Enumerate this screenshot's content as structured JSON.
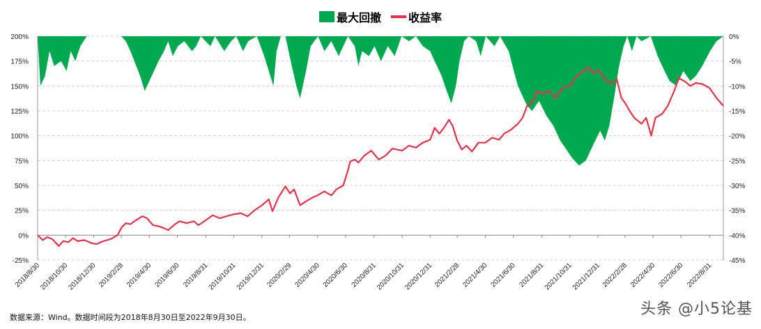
{
  "legend": {
    "drawdown": "最大回撤",
    "return": "收益率"
  },
  "note": "数据来源：Wind。数据时间段为2018年8月30日至2022年9月30日。",
  "watermark": "头条 @小5论基",
  "colors": {
    "drawdown": "#00a84f",
    "return": "#e8304a"
  },
  "chart_data": {
    "type": "line+area",
    "title": "",
    "left_axis": {
      "range": [
        -25,
        200
      ],
      "ticks": [
        "200%",
        "175%",
        "150%",
        "125%",
        "100%",
        "75%",
        "50%",
        "25%",
        "0%",
        "-25%"
      ]
    },
    "right_axis": {
      "range": [
        -45,
        0
      ],
      "ticks": [
        "0%",
        "-5%",
        "-10%",
        "-15%",
        "-20%",
        "-25%",
        "-30%",
        "-35%",
        "-40%",
        "-45%"
      ]
    },
    "x_range": [
      "2018-08-30",
      "2022-09-30"
    ],
    "x_ticks": [
      "2018/8/30",
      "2018/10/30",
      "2018/12/30",
      "2019/2/28",
      "2019/4/30",
      "2019/6/30",
      "2019/8/31",
      "2019/10/31",
      "2019/12/31",
      "2020/2/29",
      "2020/4/30",
      "2020/6/30",
      "2020/8/31",
      "2020/10/31",
      "2020/12/31",
      "2021/2/28",
      "2021/4/30",
      "2021/6/30",
      "2021/8/31",
      "2021/10/31",
      "2021/12/31",
      "2022/2/28",
      "2022/4/30",
      "2022/6/30",
      "2022/8/31"
    ],
    "grid": "horizontal dashed",
    "legend_position": "top",
    "series": [
      {
        "name": "收益率",
        "axis": "left",
        "type": "line",
        "points": [
          [
            "2018-08-30",
            0
          ],
          [
            "2018-09-10",
            -5
          ],
          [
            "2018-09-20",
            -2
          ],
          [
            "2018-10-01",
            -4
          ],
          [
            "2018-10-15",
            -11
          ],
          [
            "2018-10-25",
            -6
          ],
          [
            "2018-11-05",
            -7
          ],
          [
            "2018-11-15",
            -3
          ],
          [
            "2018-11-25",
            -6
          ],
          [
            "2018-12-10",
            -5
          ],
          [
            "2018-12-25",
            -8
          ],
          [
            "2019-01-05",
            -9
          ],
          [
            "2019-01-20",
            -6
          ],
          [
            "2019-02-05",
            -4
          ],
          [
            "2019-02-20",
            0
          ],
          [
            "2019-03-01",
            8
          ],
          [
            "2019-03-10",
            12
          ],
          [
            "2019-03-20",
            11
          ],
          [
            "2019-04-01",
            15
          ],
          [
            "2019-04-15",
            19
          ],
          [
            "2019-04-25",
            17
          ],
          [
            "2019-05-08",
            10
          ],
          [
            "2019-05-20",
            9
          ],
          [
            "2019-06-01",
            7
          ],
          [
            "2019-06-10",
            5
          ],
          [
            "2019-06-25",
            11
          ],
          [
            "2019-07-05",
            14
          ],
          [
            "2019-07-20",
            12
          ],
          [
            "2019-08-05",
            14
          ],
          [
            "2019-08-15",
            10
          ],
          [
            "2019-08-31",
            15
          ],
          [
            "2019-09-15",
            20
          ],
          [
            "2019-09-30",
            17
          ],
          [
            "2019-10-15",
            19
          ],
          [
            "2019-10-31",
            21
          ],
          [
            "2019-11-15",
            22
          ],
          [
            "2019-11-30",
            19
          ],
          [
            "2019-12-15",
            25
          ],
          [
            "2019-12-31",
            30
          ],
          [
            "2020-01-15",
            36
          ],
          [
            "2020-01-23",
            24
          ],
          [
            "2020-02-05",
            38
          ],
          [
            "2020-02-20",
            49
          ],
          [
            "2020-03-01",
            42
          ],
          [
            "2020-03-10",
            46
          ],
          [
            "2020-03-23",
            30
          ],
          [
            "2020-04-05",
            34
          ],
          [
            "2020-04-20",
            38
          ],
          [
            "2020-04-30",
            40
          ],
          [
            "2020-05-15",
            44
          ],
          [
            "2020-05-30",
            40
          ],
          [
            "2020-06-10",
            46
          ],
          [
            "2020-06-25",
            50
          ],
          [
            "2020-07-05",
            65
          ],
          [
            "2020-07-10",
            74
          ],
          [
            "2020-07-20",
            76
          ],
          [
            "2020-07-28",
            73
          ],
          [
            "2020-08-10",
            80
          ],
          [
            "2020-08-25",
            85
          ],
          [
            "2020-09-10",
            76
          ],
          [
            "2020-09-25",
            80
          ],
          [
            "2020-10-10",
            87
          ],
          [
            "2020-10-31",
            85
          ],
          [
            "2020-11-15",
            90
          ],
          [
            "2020-11-30",
            88
          ],
          [
            "2020-12-15",
            93
          ],
          [
            "2020-12-31",
            96
          ],
          [
            "2021-01-10",
            108
          ],
          [
            "2021-01-20",
            102
          ],
          [
            "2021-01-30",
            108
          ],
          [
            "2021-02-10",
            116
          ],
          [
            "2021-02-18",
            110
          ],
          [
            "2021-02-28",
            95
          ],
          [
            "2021-03-10",
            86
          ],
          [
            "2021-03-20",
            90
          ],
          [
            "2021-04-01",
            84
          ],
          [
            "2021-04-15",
            93
          ],
          [
            "2021-04-30",
            93
          ],
          [
            "2021-05-15",
            98
          ],
          [
            "2021-05-30",
            96
          ],
          [
            "2021-06-10",
            102
          ],
          [
            "2021-06-25",
            106
          ],
          [
            "2021-07-10",
            112
          ],
          [
            "2021-07-20",
            118
          ],
          [
            "2021-07-30",
            130
          ],
          [
            "2021-08-10",
            133
          ],
          [
            "2021-08-20",
            145
          ],
          [
            "2021-08-31",
            142
          ],
          [
            "2021-09-15",
            145
          ],
          [
            "2021-09-30",
            138
          ],
          [
            "2021-10-15",
            148
          ],
          [
            "2021-10-31",
            150
          ],
          [
            "2021-11-15",
            160
          ],
          [
            "2021-11-30",
            165
          ],
          [
            "2021-12-10",
            169
          ],
          [
            "2021-12-20",
            163
          ],
          [
            "2021-12-31",
            166
          ],
          [
            "2022-01-10",
            160
          ],
          [
            "2022-01-20",
            155
          ],
          [
            "2022-01-30",
            152
          ],
          [
            "2022-02-10",
            157
          ],
          [
            "2022-02-20",
            138
          ],
          [
            "2022-02-28",
            133
          ],
          [
            "2022-03-10",
            125
          ],
          [
            "2022-03-20",
            118
          ],
          [
            "2022-04-05",
            112
          ],
          [
            "2022-04-15",
            118
          ],
          [
            "2022-04-26",
            100
          ],
          [
            "2022-05-05",
            118
          ],
          [
            "2022-05-20",
            122
          ],
          [
            "2022-06-01",
            130
          ],
          [
            "2022-06-15",
            145
          ],
          [
            "2022-06-25",
            158
          ],
          [
            "2022-07-10",
            154
          ],
          [
            "2022-07-20",
            150
          ],
          [
            "2022-08-01",
            153
          ],
          [
            "2022-08-15",
            152
          ],
          [
            "2022-08-31",
            148
          ],
          [
            "2022-09-15",
            138
          ],
          [
            "2022-09-30",
            130
          ]
        ]
      },
      {
        "name": "最大回撤",
        "axis": "right",
        "type": "area",
        "points": [
          [
            "2018-08-30",
            0
          ],
          [
            "2018-09-05",
            -10
          ],
          [
            "2018-09-15",
            -8
          ],
          [
            "2018-09-25",
            -3
          ],
          [
            "2018-10-05",
            -6
          ],
          [
            "2018-10-20",
            -5
          ],
          [
            "2018-11-01",
            -7
          ],
          [
            "2018-11-10",
            -3
          ],
          [
            "2018-11-20",
            -5
          ],
          [
            "2018-12-01",
            -2
          ],
          [
            "2018-12-15",
            0
          ],
          [
            "2019-01-10",
            0
          ],
          [
            "2019-02-28",
            0
          ],
          [
            "2019-03-10",
            -1
          ],
          [
            "2019-03-20",
            -3
          ],
          [
            "2019-04-10",
            -8
          ],
          [
            "2019-04-20",
            -11
          ],
          [
            "2019-05-05",
            -8
          ],
          [
            "2019-05-20",
            -5
          ],
          [
            "2019-06-01",
            -3
          ],
          [
            "2019-06-10",
            -1
          ],
          [
            "2019-06-20",
            -4
          ],
          [
            "2019-07-01",
            -2
          ],
          [
            "2019-07-15",
            -1
          ],
          [
            "2019-08-01",
            -3
          ],
          [
            "2019-08-10",
            -2
          ],
          [
            "2019-08-20",
            0
          ],
          [
            "2019-09-10",
            -2
          ],
          [
            "2019-09-20",
            0
          ],
          [
            "2019-10-10",
            -3
          ],
          [
            "2019-10-25",
            -1
          ],
          [
            "2019-11-05",
            0
          ],
          [
            "2019-11-20",
            -3
          ],
          [
            "2019-12-01",
            -1
          ],
          [
            "2019-12-20",
            0
          ],
          [
            "2020-01-05",
            -4
          ],
          [
            "2020-01-15",
            -7
          ],
          [
            "2020-01-25",
            -10
          ],
          [
            "2020-02-01",
            -3
          ],
          [
            "2020-02-10",
            0
          ],
          [
            "2020-02-20",
            0
          ],
          [
            "2020-03-05",
            -6
          ],
          [
            "2020-03-15",
            -10
          ],
          [
            "2020-03-23",
            -12.5
          ],
          [
            "2020-04-05",
            -7
          ],
          [
            "2020-04-15",
            -2
          ],
          [
            "2020-05-01",
            0
          ],
          [
            "2020-05-15",
            -3
          ],
          [
            "2020-05-30",
            -1
          ],
          [
            "2020-06-15",
            -4
          ],
          [
            "2020-06-25",
            -2
          ],
          [
            "2020-07-05",
            0
          ],
          [
            "2020-07-20",
            -2
          ],
          [
            "2020-07-28",
            -6
          ],
          [
            "2020-08-05",
            -3
          ],
          [
            "2020-08-20",
            -4
          ],
          [
            "2020-09-01",
            -2
          ],
          [
            "2020-09-15",
            -5
          ],
          [
            "2020-09-30",
            -2
          ],
          [
            "2020-10-15",
            -4
          ],
          [
            "2020-10-30",
            0
          ],
          [
            "2020-11-15",
            -1
          ],
          [
            "2020-11-30",
            0
          ],
          [
            "2020-12-15",
            -2
          ],
          [
            "2020-12-31",
            -3
          ],
          [
            "2021-01-10",
            -5
          ],
          [
            "2021-01-25",
            -8
          ],
          [
            "2021-02-05",
            -11
          ],
          [
            "2021-02-15",
            -13.5
          ],
          [
            "2021-02-25",
            -10
          ],
          [
            "2021-03-05",
            -5
          ],
          [
            "2021-03-15",
            -1
          ],
          [
            "2021-03-25",
            0
          ],
          [
            "2021-04-10",
            -1
          ],
          [
            "2021-04-20",
            -4
          ],
          [
            "2021-05-01",
            0
          ],
          [
            "2021-05-20",
            -2
          ],
          [
            "2021-06-01",
            0
          ],
          [
            "2021-06-20",
            -3
          ],
          [
            "2021-07-01",
            -7
          ],
          [
            "2021-07-10",
            -10
          ],
          [
            "2021-07-20",
            -12
          ],
          [
            "2021-07-30",
            -14
          ],
          [
            "2021-08-10",
            -15
          ],
          [
            "2021-08-25",
            -13
          ],
          [
            "2021-09-10",
            -16
          ],
          [
            "2021-09-25",
            -18
          ],
          [
            "2021-10-10",
            -21
          ],
          [
            "2021-10-25",
            -23
          ],
          [
            "2021-11-05",
            -24.5
          ],
          [
            "2021-11-20",
            -26
          ],
          [
            "2021-12-05",
            -25
          ],
          [
            "2021-12-20",
            -22
          ],
          [
            "2022-01-05",
            -19
          ],
          [
            "2022-01-15",
            -21
          ],
          [
            "2022-01-25",
            -18
          ],
          [
            "2022-02-05",
            -12
          ],
          [
            "2022-02-15",
            -6
          ],
          [
            "2022-02-25",
            -2
          ],
          [
            "2022-03-05",
            0
          ],
          [
            "2022-03-15",
            -3
          ],
          [
            "2022-03-25",
            0
          ],
          [
            "2022-04-05",
            -1
          ],
          [
            "2022-04-25",
            0
          ],
          [
            "2022-05-10",
            -4
          ],
          [
            "2022-05-25",
            -7
          ],
          [
            "2022-06-05",
            -9
          ],
          [
            "2022-06-20",
            -10
          ],
          [
            "2022-07-05",
            -7
          ],
          [
            "2022-07-20",
            -9
          ],
          [
            "2022-08-01",
            -8
          ],
          [
            "2022-08-15",
            -6
          ],
          [
            "2022-09-01",
            -3
          ],
          [
            "2022-09-15",
            -1
          ],
          [
            "2022-09-30",
            0
          ]
        ]
      }
    ]
  }
}
